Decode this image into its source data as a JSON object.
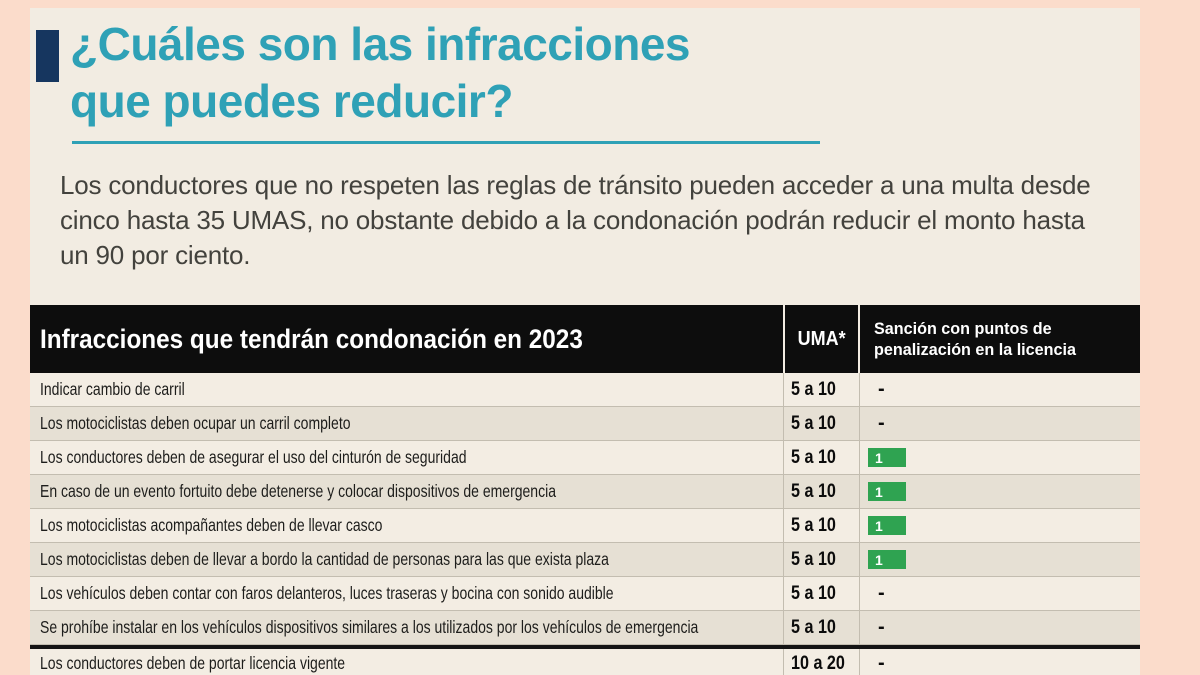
{
  "header": {
    "title_line1": "¿Cuáles son las infracciones",
    "title_line2": "que puedes reducir?"
  },
  "intro": {
    "text": "Los conductores que no respeten las reglas de tránsito pueden acceder a una multa desde cinco hasta 35 UMAS, no obstante debido a la condonación podrán reducir el monto hasta un 90 por ciento."
  },
  "chart_data": {
    "type": "table",
    "title": "Infracciones que tendrán condonación en 2023",
    "columns": {
      "infraction": "Infracciones que tendrán condonación en 2023",
      "uma": "UMA*",
      "penalty": "Sanción con puntos de penalización en la licencia"
    },
    "rows": [
      {
        "infraction": "Indicar cambio de carril",
        "uma": "5 a 10",
        "penalty": "-",
        "penalty_badge": false
      },
      {
        "infraction": "Los motociclistas deben ocupar un carril completo",
        "uma": "5 a 10",
        "penalty": "-",
        "penalty_badge": false
      },
      {
        "infraction": "Los conductores deben de asegurar el uso del cinturón de seguridad",
        "uma": "5 a 10",
        "penalty": "1",
        "penalty_badge": true
      },
      {
        "infraction": "En caso de un evento fortuito debe detenerse y colocar dispositivos de emergencia",
        "uma": "5 a 10",
        "penalty": "1",
        "penalty_badge": true
      },
      {
        "infraction": "Los motociclistas acompañantes deben de llevar casco",
        "uma": "5 a 10",
        "penalty": "1",
        "penalty_badge": true
      },
      {
        "infraction": "Los motociclistas deben de llevar a bordo la cantidad de personas para las que exista plaza",
        "uma": "5 a 10",
        "penalty": "1",
        "penalty_badge": true
      },
      {
        "infraction": "Los vehículos deben contar con faros delanteros, luces traseras y bocina con sonido audible",
        "uma": "5 a 10",
        "penalty": "-",
        "penalty_badge": false
      },
      {
        "infraction": "Se prohíbe instalar en los vehículos dispositivos similares a los utilizados por los vehículos de emergencia",
        "uma": "5 a 10",
        "penalty": "-",
        "penalty_badge": false
      },
      {
        "infraction": "Los conductores deben de portar licencia vigente",
        "uma": "10 a 20",
        "penalty": "-",
        "penalty_badge": false,
        "section_break": true
      }
    ]
  },
  "colors": {
    "page_background": "#fbdccb",
    "panel_background": "#f2ece2",
    "title_teal": "#2fa1b6",
    "accent_navy": "#16365f",
    "table_header_bg": "#0d0d0d",
    "table_header_text": "#ffffff",
    "row_alt_bg": "#e6e0d4",
    "badge_green": "#2fa351",
    "body_text": "#43423d"
  }
}
